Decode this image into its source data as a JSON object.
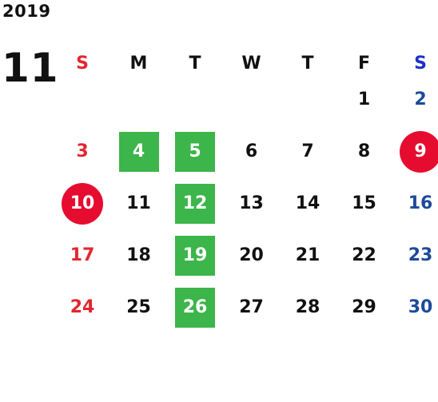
{
  "calendar": {
    "year": "2019",
    "month": "11",
    "weekdays": [
      "S",
      "M",
      "T",
      "W",
      "T",
      "F",
      "S"
    ],
    "weeks": [
      [
        {
          "day": "",
          "style": "empty"
        },
        {
          "day": "",
          "style": "empty"
        },
        {
          "day": "",
          "style": "empty"
        },
        {
          "day": "",
          "style": "empty"
        },
        {
          "day": "",
          "style": "empty"
        },
        {
          "day": "1",
          "style": "normal"
        },
        {
          "day": "2",
          "style": "saturday"
        }
      ],
      [
        {
          "day": "3",
          "style": "sunday"
        },
        {
          "day": "4",
          "style": "green"
        },
        {
          "day": "5",
          "style": "green"
        },
        {
          "day": "6",
          "style": "normal"
        },
        {
          "day": "7",
          "style": "normal"
        },
        {
          "day": "8",
          "style": "normal"
        },
        {
          "day": "9",
          "style": "red-circle"
        }
      ],
      [
        {
          "day": "10",
          "style": "red-circle"
        },
        {
          "day": "11",
          "style": "normal"
        },
        {
          "day": "12",
          "style": "green"
        },
        {
          "day": "13",
          "style": "normal"
        },
        {
          "day": "14",
          "style": "normal"
        },
        {
          "day": "15",
          "style": "normal"
        },
        {
          "day": "16",
          "style": "saturday"
        }
      ],
      [
        {
          "day": "17",
          "style": "sunday"
        },
        {
          "day": "18",
          "style": "normal"
        },
        {
          "day": "19",
          "style": "green"
        },
        {
          "day": "20",
          "style": "normal"
        },
        {
          "day": "21",
          "style": "normal"
        },
        {
          "day": "22",
          "style": "normal"
        },
        {
          "day": "23",
          "style": "saturday"
        }
      ],
      [
        {
          "day": "24",
          "style": "sunday"
        },
        {
          "day": "25",
          "style": "normal"
        },
        {
          "day": "26",
          "style": "green"
        },
        {
          "day": "27",
          "style": "normal"
        },
        {
          "day": "28",
          "style": "normal"
        },
        {
          "day": "29",
          "style": "normal"
        },
        {
          "day": "30",
          "style": "saturday"
        }
      ]
    ],
    "colors": {
      "sunday": "#e3262f",
      "saturday": "#1d4a9a",
      "saturday_header": "#1a34c8",
      "green_mark": "#3cb54a",
      "red_mark": "#e60c2f",
      "text": "#111111"
    }
  }
}
